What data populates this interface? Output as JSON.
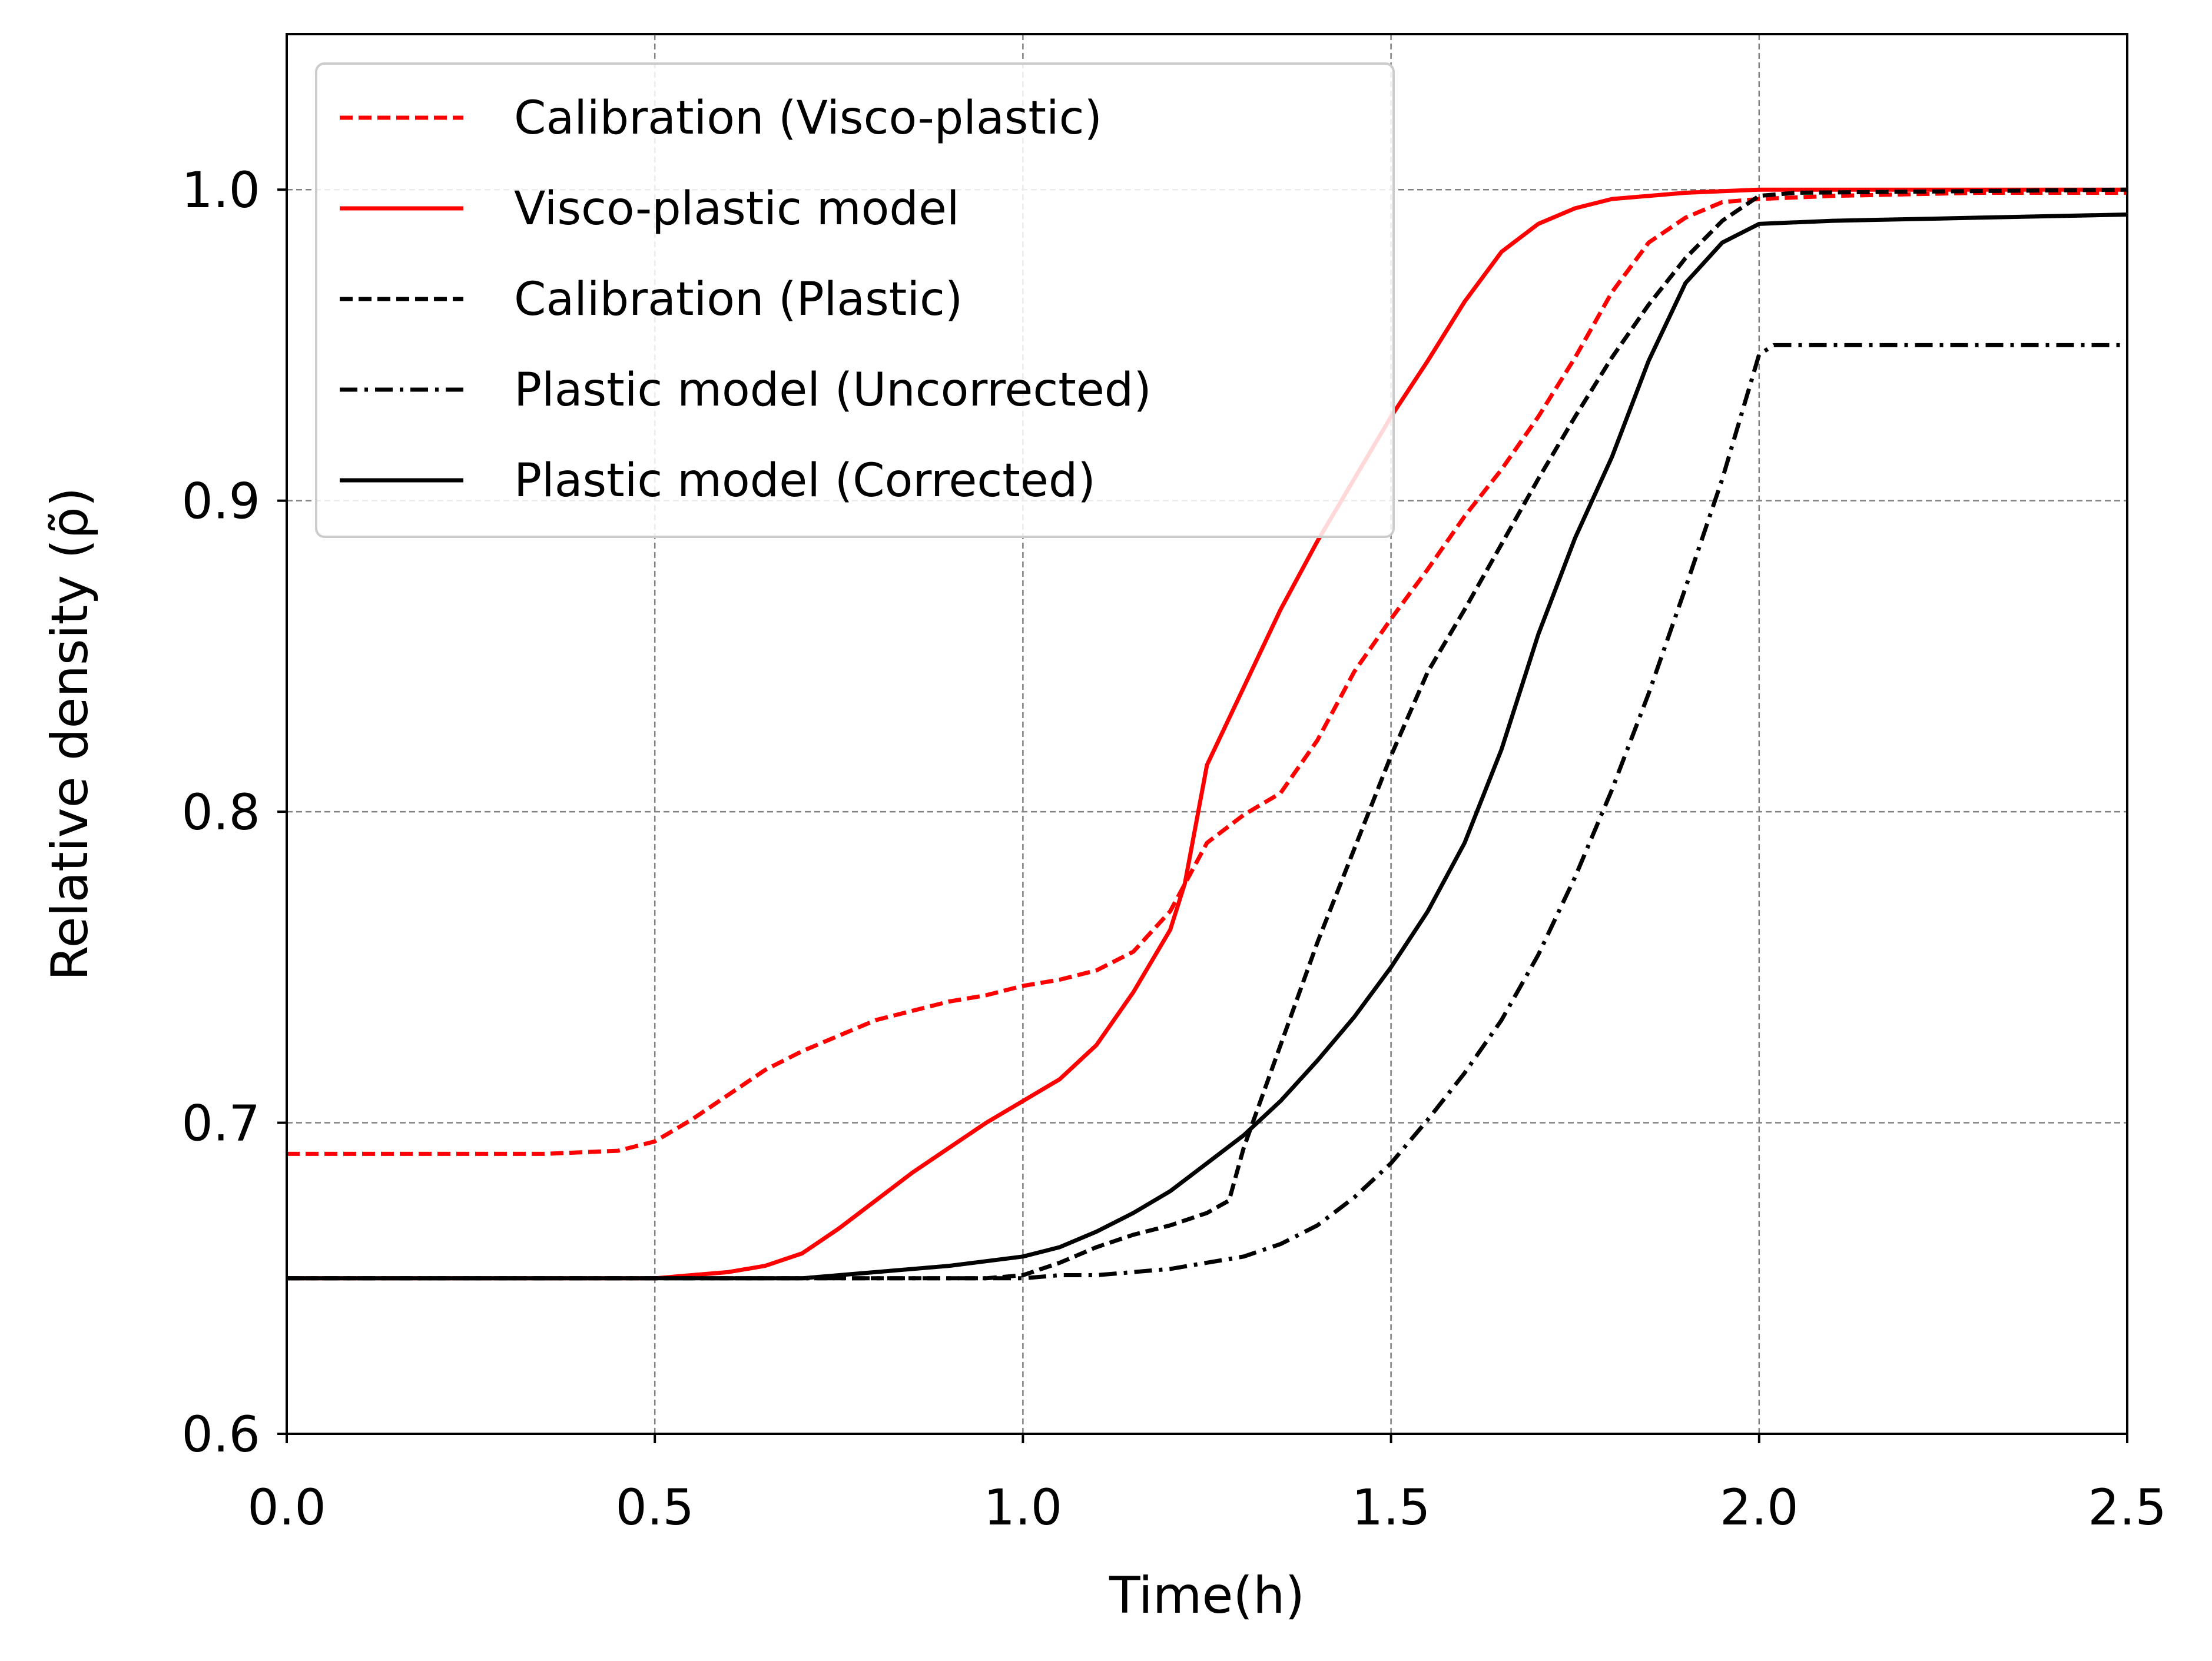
{
  "chart_data": {
    "type": "line",
    "title": "",
    "xlabel": "Time(h)",
    "ylabel": "Relative density (ρ̃)",
    "xlim": [
      0.0,
      2.5
    ],
    "ylim": [
      0.6,
      1.05
    ],
    "xticks": [
      0.0,
      0.5,
      1.0,
      1.5,
      2.0,
      2.5
    ],
    "xtick_labels": [
      "0.0",
      "0.5",
      "1.0",
      "1.5",
      "2.0",
      "2.5"
    ],
    "yticks": [
      0.6,
      0.7,
      0.8,
      0.9,
      1.0
    ],
    "ytick_labels": [
      "0.6",
      "0.7",
      "0.8",
      "0.9",
      "1.0"
    ],
    "grid": true,
    "legend_position": "top-left",
    "series": [
      {
        "name": "Calibration (Visco-plastic)",
        "color": "#ff0000",
        "style": "dashed",
        "points": [
          [
            0.0,
            0.69
          ],
          [
            0.2,
            0.69
          ],
          [
            0.35,
            0.69
          ],
          [
            0.45,
            0.691
          ],
          [
            0.5,
            0.694
          ],
          [
            0.55,
            0.701
          ],
          [
            0.6,
            0.709
          ],
          [
            0.65,
            0.717
          ],
          [
            0.7,
            0.723
          ],
          [
            0.75,
            0.728
          ],
          [
            0.8,
            0.733
          ],
          [
            0.85,
            0.736
          ],
          [
            0.9,
            0.739
          ],
          [
            0.95,
            0.741
          ],
          [
            1.0,
            0.744
          ],
          [
            1.05,
            0.746
          ],
          [
            1.1,
            0.749
          ],
          [
            1.15,
            0.755
          ],
          [
            1.2,
            0.768
          ],
          [
            1.25,
            0.79
          ],
          [
            1.3,
            0.799
          ],
          [
            1.35,
            0.806
          ],
          [
            1.4,
            0.823
          ],
          [
            1.45,
            0.845
          ],
          [
            1.5,
            0.862
          ],
          [
            1.55,
            0.878
          ],
          [
            1.6,
            0.895
          ],
          [
            1.65,
            0.91
          ],
          [
            1.7,
            0.927
          ],
          [
            1.75,
            0.946
          ],
          [
            1.8,
            0.967
          ],
          [
            1.85,
            0.983
          ],
          [
            1.9,
            0.991
          ],
          [
            1.95,
            0.996
          ],
          [
            2.0,
            0.997
          ],
          [
            2.1,
            0.998
          ],
          [
            2.3,
            0.999
          ],
          [
            2.5,
            0.999
          ]
        ]
      },
      {
        "name": "Visco-plastic model",
        "color": "#ff0000",
        "style": "solid",
        "points": [
          [
            0.0,
            0.65
          ],
          [
            0.3,
            0.65
          ],
          [
            0.5,
            0.65
          ],
          [
            0.6,
            0.652
          ],
          [
            0.65,
            0.654
          ],
          [
            0.7,
            0.658
          ],
          [
            0.75,
            0.666
          ],
          [
            0.8,
            0.675
          ],
          [
            0.85,
            0.684
          ],
          [
            0.9,
            0.692
          ],
          [
            0.95,
            0.7
          ],
          [
            1.0,
            0.707
          ],
          [
            1.05,
            0.714
          ],
          [
            1.1,
            0.725
          ],
          [
            1.15,
            0.742
          ],
          [
            1.2,
            0.762
          ],
          [
            1.22,
            0.777
          ],
          [
            1.25,
            0.815
          ],
          [
            1.3,
            0.84
          ],
          [
            1.35,
            0.865
          ],
          [
            1.4,
            0.887
          ],
          [
            1.45,
            0.907
          ],
          [
            1.5,
            0.927
          ],
          [
            1.55,
            0.945
          ],
          [
            1.6,
            0.964
          ],
          [
            1.65,
            0.98
          ],
          [
            1.7,
            0.989
          ],
          [
            1.75,
            0.994
          ],
          [
            1.8,
            0.997
          ],
          [
            1.9,
            0.999
          ],
          [
            2.0,
            1.0
          ],
          [
            2.5,
            1.0
          ]
        ]
      },
      {
        "name": "Calibration (Plastic)",
        "color": "#000000",
        "style": "dashed",
        "points": [
          [
            0.0,
            0.65
          ],
          [
            0.5,
            0.65
          ],
          [
            0.75,
            0.65
          ],
          [
            0.95,
            0.65
          ],
          [
            1.0,
            0.651
          ],
          [
            1.05,
            0.655
          ],
          [
            1.1,
            0.66
          ],
          [
            1.15,
            0.664
          ],
          [
            1.2,
            0.667
          ],
          [
            1.25,
            0.671
          ],
          [
            1.28,
            0.675
          ],
          [
            1.3,
            0.692
          ],
          [
            1.35,
            0.725
          ],
          [
            1.4,
            0.758
          ],
          [
            1.45,
            0.788
          ],
          [
            1.5,
            0.818
          ],
          [
            1.55,
            0.845
          ],
          [
            1.6,
            0.865
          ],
          [
            1.65,
            0.886
          ],
          [
            1.7,
            0.907
          ],
          [
            1.75,
            0.927
          ],
          [
            1.8,
            0.946
          ],
          [
            1.85,
            0.963
          ],
          [
            1.9,
            0.978
          ],
          [
            1.95,
            0.99
          ],
          [
            2.0,
            0.998
          ],
          [
            2.05,
            0.999
          ],
          [
            2.5,
            1.0
          ]
        ]
      },
      {
        "name": "Plastic model (Uncorrected)",
        "color": "#000000",
        "style": "dashdot",
        "points": [
          [
            0.0,
            0.65
          ],
          [
            0.5,
            0.65
          ],
          [
            1.0,
            0.65
          ],
          [
            1.05,
            0.651
          ],
          [
            1.1,
            0.651
          ],
          [
            1.2,
            0.653
          ],
          [
            1.3,
            0.657
          ],
          [
            1.35,
            0.661
          ],
          [
            1.4,
            0.667
          ],
          [
            1.45,
            0.676
          ],
          [
            1.5,
            0.687
          ],
          [
            1.55,
            0.701
          ],
          [
            1.6,
            0.716
          ],
          [
            1.65,
            0.733
          ],
          [
            1.7,
            0.754
          ],
          [
            1.75,
            0.779
          ],
          [
            1.8,
            0.807
          ],
          [
            1.85,
            0.838
          ],
          [
            1.9,
            0.872
          ],
          [
            1.95,
            0.907
          ],
          [
            2.0,
            0.947
          ],
          [
            2.02,
            0.95
          ],
          [
            2.5,
            0.95
          ]
        ]
      },
      {
        "name": "Plastic model (Corrected)",
        "color": "#000000",
        "style": "solid",
        "points": [
          [
            0.0,
            0.65
          ],
          [
            0.5,
            0.65
          ],
          [
            0.7,
            0.65
          ],
          [
            0.8,
            0.652
          ],
          [
            0.9,
            0.654
          ],
          [
            1.0,
            0.657
          ],
          [
            1.05,
            0.66
          ],
          [
            1.1,
            0.665
          ],
          [
            1.15,
            0.671
          ],
          [
            1.2,
            0.678
          ],
          [
            1.25,
            0.687
          ],
          [
            1.3,
            0.696
          ],
          [
            1.35,
            0.707
          ],
          [
            1.4,
            0.72
          ],
          [
            1.45,
            0.734
          ],
          [
            1.5,
            0.75
          ],
          [
            1.55,
            0.768
          ],
          [
            1.6,
            0.79
          ],
          [
            1.65,
            0.82
          ],
          [
            1.7,
            0.857
          ],
          [
            1.75,
            0.888
          ],
          [
            1.8,
            0.914
          ],
          [
            1.85,
            0.945
          ],
          [
            1.9,
            0.97
          ],
          [
            1.95,
            0.983
          ],
          [
            2.0,
            0.989
          ],
          [
            2.1,
            0.99
          ],
          [
            2.3,
            0.991
          ],
          [
            2.5,
            0.992
          ]
        ]
      }
    ]
  }
}
